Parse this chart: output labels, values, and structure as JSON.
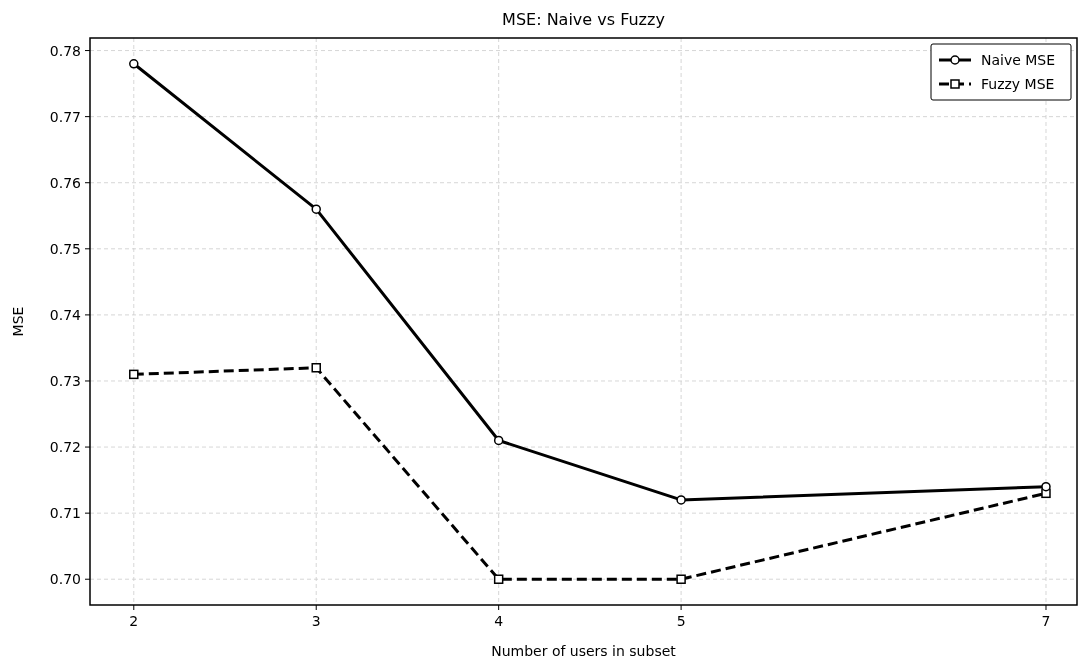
{
  "chart_data": {
    "type": "line",
    "title": "MSE: Naive vs Fuzzy",
    "xlabel": "Number of users in subset",
    "ylabel": "MSE",
    "x": [
      2,
      3,
      4,
      5,
      7
    ],
    "series": [
      {
        "name": "Naive MSE",
        "color": "#000000",
        "values": [
          0.778,
          0.756,
          0.721,
          0.712,
          0.714
        ],
        "marker": "circle",
        "line_style": "solid"
      },
      {
        "name": "Fuzzy MSE",
        "color": "#000000",
        "values": [
          0.731,
          0.732,
          0.7,
          0.7,
          0.713
        ],
        "marker": "square",
        "line_style": "dashed"
      }
    ],
    "xlim": [
      1.76,
      7.17
    ],
    "xticks": [
      2,
      3,
      4,
      5,
      7
    ],
    "ylim": [
      0.6961,
      0.7819
    ],
    "yticks": [
      {
        "value": 0.7,
        "label": "0.70"
      },
      0.71,
      0.72,
      0.73,
      0.74,
      0.75,
      0.76,
      0.77,
      0.78
    ],
    "grid": true,
    "legend": "top right"
  }
}
